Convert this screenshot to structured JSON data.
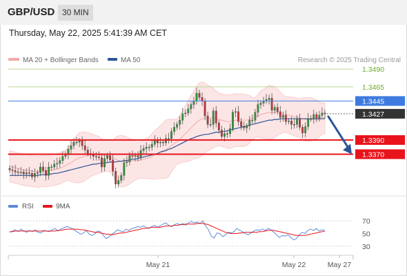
{
  "header": {
    "symbol": "GBP/USD",
    "timeframe": "30 MIN",
    "datetime": "Thursday, May 22, 2025 5:41:39 AM CET"
  },
  "legend": {
    "ma20_label": "MA 20 + Bollinger Bands",
    "ma50_label": "MA 50",
    "rsi_label": "RSI",
    "ma9_label": "9MA",
    "watermark": "Research © 2025 Trading Central"
  },
  "colors": {
    "resistance_green": "#6aaa2a",
    "ma20_band": "#f4a8a8",
    "ma50": "#2c5596",
    "level_red": "#e8131b",
    "level_blue": "#3d7be0",
    "current_price_bg": "#333333",
    "rsi_line": "#5b8bd9",
    "rsi_ma9": "#e8131b",
    "arrow": "#2c5596"
  },
  "chart_data": [
    {
      "type": "candlestick",
      "title": "GBP/USD",
      "x_tick_labels": [
        "May 21",
        "May 22",
        "May 27"
      ],
      "ylim": [
        1.3315,
        1.3495
      ],
      "levels": [
        {
          "value": 1.349,
          "label": "1.3490",
          "style": "green-line"
        },
        {
          "value": 1.3465,
          "label": "1.3465",
          "style": "green-line"
        },
        {
          "value": 1.3445,
          "label": "1.3445",
          "style": "blue-line"
        },
        {
          "value": 1.3427,
          "label": "1.3427",
          "style": "current-price"
        },
        {
          "value": 1.339,
          "label": "1.3390",
          "style": "red-line"
        },
        {
          "value": 1.337,
          "label": "1.3370",
          "style": "red-line"
        }
      ],
      "forecast_arrow": {
        "from": 1.3425,
        "to": 1.337
      },
      "series": [
        {
          "name": "Close",
          "values": [
            1.3348,
            1.3347,
            1.3345,
            1.3344,
            1.3345,
            1.3342,
            1.3344,
            1.3343,
            1.3338,
            1.3343,
            1.3344,
            1.3352,
            1.3347,
            1.334,
            1.3352,
            1.3352,
            1.3356,
            1.3357,
            1.3361,
            1.3367,
            1.337,
            1.3377,
            1.3382,
            1.3387,
            1.3387,
            1.3389,
            1.3382,
            1.3376,
            1.3371,
            1.337,
            1.3367,
            1.3366,
            1.3365,
            1.3352,
            1.3364,
            1.3368,
            1.3362,
            1.3346,
            1.3328,
            1.3333,
            1.334,
            1.3358,
            1.3359,
            1.3368,
            1.3367,
            1.3368,
            1.3366,
            1.3375,
            1.3378,
            1.338,
            1.338,
            1.3384,
            1.3389,
            1.3386,
            1.3387,
            1.3386,
            1.3392,
            1.3392,
            1.3402,
            1.3408,
            1.3412,
            1.3418,
            1.3427,
            1.3428,
            1.3434,
            1.344,
            1.3445,
            1.3456,
            1.345,
            1.3445,
            1.3424,
            1.3412,
            1.3412,
            1.3431,
            1.3414,
            1.3404,
            1.3395,
            1.3399,
            1.3399,
            1.3406,
            1.3429,
            1.343,
            1.3416,
            1.3409,
            1.3407,
            1.341,
            1.3418,
            1.3418,
            1.3429,
            1.344,
            1.3442,
            1.3445,
            1.3447,
            1.3449,
            1.3432,
            1.3436,
            1.343,
            1.3422,
            1.3425,
            1.3416,
            1.3417,
            1.3412,
            1.3412,
            1.342,
            1.3408,
            1.34,
            1.3409,
            1.342,
            1.342,
            1.3426,
            1.3421,
            1.3425,
            1.3428,
            1.3427
          ]
        },
        {
          "name": "MA 20",
          "values": [
            1.3353,
            1.3352,
            1.3351,
            1.335,
            1.3349,
            1.3348,
            1.3347,
            1.3347,
            1.3346,
            1.3346,
            1.3345,
            1.3346,
            1.3346,
            1.3346,
            1.3347,
            1.3347,
            1.3348,
            1.3349,
            1.335,
            1.3352,
            1.3354,
            1.3356,
            1.3358,
            1.3361,
            1.3363,
            1.3365,
            1.3366,
            1.3367,
            1.3368,
            1.3369,
            1.3369,
            1.3369,
            1.3369,
            1.3368,
            1.3368,
            1.3368,
            1.3367,
            1.3365,
            1.3363,
            1.3361,
            1.336,
            1.336,
            1.336,
            1.336,
            1.3361,
            1.3361,
            1.3361,
            1.3362,
            1.3363,
            1.3364,
            1.3365,
            1.3367,
            1.3369,
            1.3371,
            1.3373,
            1.3375,
            1.3377,
            1.3379,
            1.3382,
            1.3385,
            1.3388,
            1.3391,
            1.3395,
            1.3399,
            1.3403,
            1.3407,
            1.3411,
            1.3415,
            1.3418,
            1.342,
            1.3421,
            1.3421,
            1.3421,
            1.3421,
            1.342,
            1.3419,
            1.3418,
            1.3417,
            1.3416,
            1.3416,
            1.3417,
            1.3418,
            1.3418,
            1.3418,
            1.3418,
            1.3418,
            1.3419,
            1.342,
            1.3422,
            1.3424,
            1.3426,
            1.3427,
            1.3428,
            1.3429,
            1.3429,
            1.3429,
            1.3429,
            1.3428,
            1.3427,
            1.3426,
            1.3425,
            1.3424,
            1.3423,
            1.3422,
            1.3421,
            1.342,
            1.3419,
            1.3419,
            1.3419,
            1.3419,
            1.3419,
            1.3419,
            1.342,
            1.3421
          ]
        },
        {
          "name": "MA 50",
          "values": [
            1.334,
            1.334,
            1.334,
            1.334,
            1.334,
            1.334,
            1.334,
            1.334,
            1.334,
            1.334,
            1.334,
            1.3341,
            1.3341,
            1.3341,
            1.3342,
            1.3342,
            1.3343,
            1.3343,
            1.3344,
            1.3345,
            1.3346,
            1.3347,
            1.3348,
            1.3349,
            1.335,
            1.3351,
            1.3352,
            1.3353,
            1.3354,
            1.3355,
            1.3356,
            1.3356,
            1.3357,
            1.3357,
            1.3358,
            1.3358,
            1.3359,
            1.3359,
            1.3359,
            1.336,
            1.336,
            1.3361,
            1.3361,
            1.3362,
            1.3363,
            1.3363,
            1.3364,
            1.3365,
            1.3366,
            1.3367,
            1.3368,
            1.3369,
            1.337,
            1.3371,
            1.3373,
            1.3374,
            1.3375,
            1.3377,
            1.3378,
            1.338,
            1.3382,
            1.3384,
            1.3386,
            1.3388,
            1.339,
            1.3392,
            1.3393,
            1.3395,
            1.3396,
            1.3397,
            1.3398,
            1.3398,
            1.3399,
            1.34,
            1.3401,
            1.3401,
            1.3402,
            1.3402,
            1.3403,
            1.3404,
            1.3405,
            1.3406,
            1.3407,
            1.3408,
            1.3409,
            1.341,
            1.3411,
            1.3412,
            1.3413,
            1.3414,
            1.3415,
            1.3416,
            1.3417,
            1.3418,
            1.3418,
            1.3419,
            1.3419,
            1.342,
            1.342,
            1.342,
            1.342,
            1.342,
            1.342,
            1.342,
            1.342,
            1.342,
            1.342,
            1.342,
            1.342,
            1.342,
            1.342,
            1.342,
            1.342,
            1.342
          ]
        }
      ]
    },
    {
      "type": "line",
      "title": "RSI",
      "ylim": [
        20,
        80
      ],
      "y_tick_labels": [
        "70",
        "50",
        "30"
      ],
      "series": [
        {
          "name": "RSI",
          "values": [
            52,
            54,
            56,
            53,
            57,
            54,
            52,
            55,
            53,
            56,
            52,
            51,
            55,
            54,
            53,
            56,
            58,
            54,
            57,
            59,
            61,
            60,
            58,
            55,
            52,
            49,
            51,
            55,
            49,
            47,
            50,
            54,
            53,
            47,
            42,
            45,
            49,
            52,
            56,
            54,
            53,
            57,
            55,
            58,
            59,
            61,
            60,
            62,
            60,
            58,
            61,
            63,
            60,
            62,
            65,
            67,
            63,
            61,
            64,
            66,
            64,
            66,
            63,
            67,
            69,
            67,
            68,
            66,
            70,
            62,
            56,
            46,
            43,
            51,
            50,
            45,
            48,
            52,
            51,
            53,
            58,
            55,
            53,
            50,
            48,
            51,
            54,
            56,
            55,
            57,
            55,
            58,
            56,
            52,
            48,
            44,
            47,
            46,
            48,
            44,
            40,
            42,
            48,
            52,
            50,
            55,
            57,
            55,
            58,
            54,
            56,
            55
          ]
        },
        {
          "name": "9MA",
          "values": [
            53,
            53,
            54,
            54,
            54,
            54,
            54,
            54,
            54,
            54,
            54,
            54,
            54,
            54,
            54,
            54,
            54,
            55,
            55,
            56,
            57,
            57,
            57,
            57,
            57,
            56,
            56,
            55,
            54,
            53,
            52,
            52,
            51,
            50,
            49,
            49,
            48,
            49,
            50,
            51,
            51,
            52,
            53,
            54,
            55,
            56,
            57,
            58,
            58,
            59,
            60,
            60,
            60,
            60,
            61,
            62,
            62,
            62,
            63,
            63,
            64,
            64,
            65,
            65,
            65,
            65,
            66,
            66,
            66,
            65,
            64,
            62,
            60,
            58,
            56,
            54,
            52,
            51,
            50,
            50,
            50,
            51,
            51,
            52,
            52,
            52,
            52,
            52,
            53,
            53,
            54,
            55,
            55,
            55,
            54,
            53,
            52,
            51,
            50,
            49,
            48,
            47,
            47,
            47,
            47,
            48,
            49,
            50,
            51,
            52,
            53,
            54
          ]
        }
      ]
    }
  ]
}
